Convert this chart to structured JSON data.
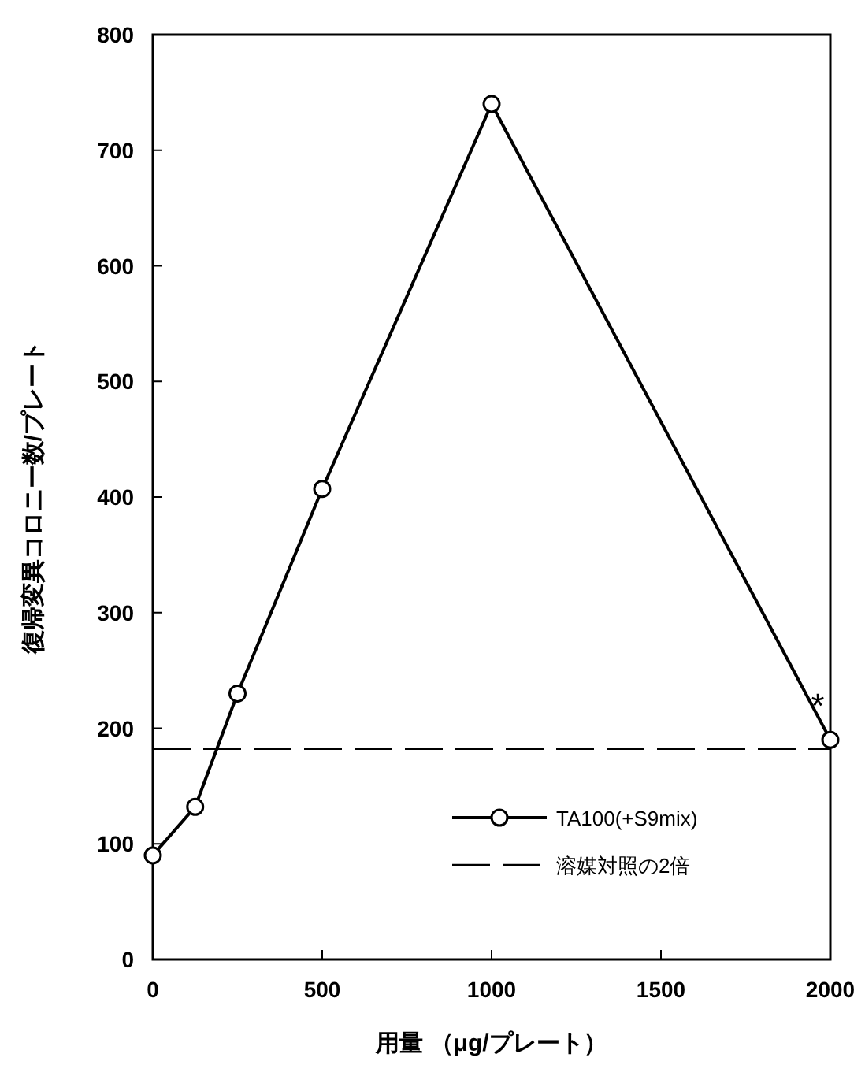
{
  "chart_data": {
    "type": "line",
    "xlabel": "用量 （μg/プレート）",
    "ylabel": "復帰変異コロニー数/プレート",
    "x": [
      0,
      125,
      250,
      500,
      1000,
      2000
    ],
    "series": [
      {
        "name": "TA100(+S9mix)",
        "color": "#000000",
        "values": [
          90,
          132,
          230,
          407,
          740,
          190
        ]
      }
    ],
    "marker": "circle",
    "line_style": "solid",
    "legend": "bottom right",
    "xlim": [
      0,
      2000
    ],
    "xticks": [
      0,
      500,
      1000,
      1500,
      2000
    ],
    "ylim": [
      0,
      800
    ],
    "yticks": [
      0,
      100,
      200,
      300,
      400,
      500,
      600,
      700,
      800
    ],
    "ref_lines": [
      {
        "axis": "y",
        "value": 182,
        "label": "溶媒対照の2倍",
        "line_style": "dashed",
        "color": "#000000"
      }
    ],
    "annotations": [
      {
        "text": "*",
        "x": 2000,
        "y": 190
      }
    ]
  }
}
